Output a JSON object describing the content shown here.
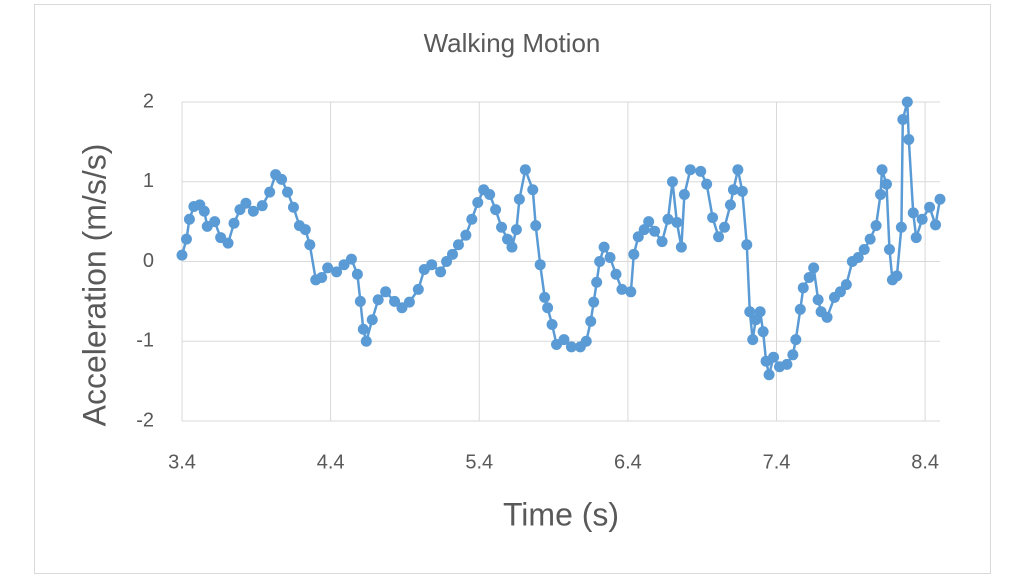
{
  "chart_data": {
    "type": "line",
    "markers": true,
    "title": "Walking Motion",
    "x_label": "Time (s)",
    "y_label": "Acceleration (m/s/s)",
    "color": "#5b9bd5",
    "grid": true,
    "xlim": [
      3.4,
      8.5
    ],
    "xticks": [
      3.4,
      4.4,
      5.4,
      6.4,
      7.4,
      8.4
    ],
    "ylim": [
      -2,
      2
    ],
    "yticks": [
      -2,
      -1,
      0,
      1,
      2
    ],
    "x": [
      3.4,
      3.43,
      3.45,
      3.48,
      3.52,
      3.55,
      3.57,
      3.62,
      3.66,
      3.71,
      3.75,
      3.79,
      3.83,
      3.88,
      3.94,
      3.99,
      4.03,
      4.07,
      4.11,
      4.15,
      4.19,
      4.23,
      4.26,
      4.3,
      4.34,
      4.38,
      4.44,
      4.49,
      4.54,
      4.58,
      4.6,
      4.62,
      4.64,
      4.68,
      4.72,
      4.77,
      4.83,
      4.88,
      4.93,
      4.99,
      5.03,
      5.08,
      5.14,
      5.18,
      5.22,
      5.26,
      5.31,
      5.35,
      5.39,
      5.43,
      5.47,
      5.51,
      5.55,
      5.59,
      5.62,
      5.65,
      5.67,
      5.71,
      5.76,
      5.78,
      5.81,
      5.84,
      5.86,
      5.89,
      5.92,
      5.97,
      6.02,
      6.08,
      6.12,
      6.15,
      6.17,
      6.19,
      6.21,
      6.24,
      6.28,
      6.32,
      6.36,
      6.42,
      6.44,
      6.47,
      6.51,
      6.54,
      6.58,
      6.63,
      6.67,
      6.7,
      6.73,
      6.76,
      6.78,
      6.82,
      6.89,
      6.93,
      6.97,
      7.01,
      7.05,
      7.09,
      7.11,
      7.14,
      7.17,
      7.2,
      7.22,
      7.24,
      7.26,
      7.29,
      7.31,
      7.33,
      7.35,
      7.38,
      7.42,
      7.47,
      7.51,
      7.53,
      7.56,
      7.58,
      7.62,
      7.65,
      7.68,
      7.7,
      7.74,
      7.79,
      7.83,
      7.87,
      7.91,
      7.95,
      7.99,
      8.03,
      8.07,
      8.1,
      8.11,
      8.14,
      8.16,
      8.18,
      8.21,
      8.24,
      8.25,
      8.28,
      8.29,
      8.32,
      8.34,
      8.38,
      8.43,
      8.47,
      8.5
    ],
    "values": [
      0.08,
      0.28,
      0.53,
      0.69,
      0.71,
      0.63,
      0.44,
      0.5,
      0.3,
      0.23,
      0.48,
      0.65,
      0.73,
      0.63,
      0.7,
      0.87,
      1.09,
      1.03,
      0.87,
      0.68,
      0.45,
      0.4,
      0.21,
      -0.23,
      -0.2,
      -0.08,
      -0.13,
      -0.04,
      0.03,
      -0.16,
      -0.5,
      -0.85,
      -1.0,
      -0.73,
      -0.48,
      -0.38,
      -0.5,
      -0.58,
      -0.51,
      -0.35,
      -0.1,
      -0.04,
      -0.13,
      0.0,
      0.09,
      0.21,
      0.33,
      0.53,
      0.74,
      0.9,
      0.84,
      0.65,
      0.43,
      0.28,
      0.18,
      0.4,
      0.78,
      1.15,
      0.9,
      0.45,
      -0.04,
      -0.45,
      -0.58,
      -0.79,
      -1.04,
      -0.98,
      -1.07,
      -1.07,
      -1.0,
      -0.75,
      -0.51,
      -0.26,
      0.0,
      0.18,
      0.05,
      -0.16,
      -0.35,
      -0.38,
      0.09,
      0.31,
      0.4,
      0.5,
      0.38,
      0.25,
      0.53,
      1.0,
      0.49,
      0.18,
      0.84,
      1.15,
      1.13,
      0.97,
      0.55,
      0.31,
      0.43,
      0.71,
      0.9,
      1.15,
      0.88,
      0.21,
      -0.63,
      -0.98,
      -0.73,
      -0.63,
      -0.88,
      -1.25,
      -1.42,
      -1.2,
      -1.32,
      -1.29,
      -1.17,
      -0.98,
      -0.6,
      -0.33,
      -0.2,
      -0.08,
      -0.48,
      -0.63,
      -0.7,
      -0.45,
      -0.38,
      -0.29,
      0.0,
      0.05,
      0.15,
      0.28,
      0.45,
      0.84,
      1.15,
      0.97,
      0.15,
      -0.23,
      -0.18,
      0.43,
      1.78,
      2.0,
      1.53,
      0.61,
      0.3,
      0.53,
      0.68,
      0.46,
      0.78
    ]
  }
}
